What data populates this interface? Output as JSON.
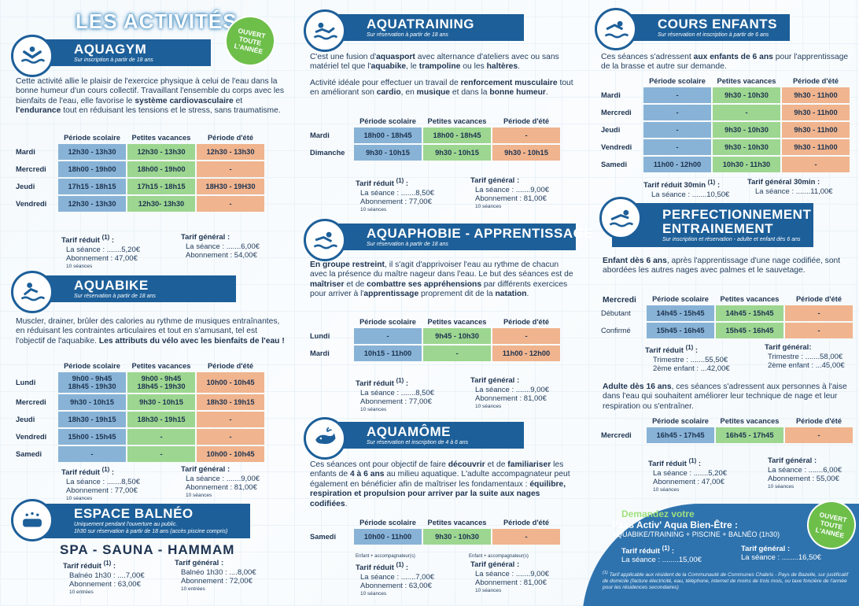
{
  "page_title": "LES ACTIVITÉS",
  "badge1": [
    "OUVERT",
    "TOUTE",
    "L'ANNÉE",
    "(1)"
  ],
  "badge2": [
    "OUVERT",
    "TOUTE",
    "L'ANNÉE",
    "(1)"
  ],
  "cols": [
    "Période scolaire",
    "Petites vacances",
    "Période d'été"
  ],
  "aquagym": {
    "title": "AQUAGYM",
    "sub": "Sur inscription à partir de 18 ans",
    "desc_html": "Cette activité allie le plaisir de l'exercice physique à celui de l'eau dans la bonne humeur d'un cours collectif. Travaillant l'ensemble du corps avec les bienfaits de l'eau, elle favorise le <b>système cardiovasculaire</b> et <b>l'endurance</b> tout en réduisant les tensions et le stress, sans traumatisme.",
    "rows": [
      [
        "Mardi",
        "12h30 - 13h30",
        "12h30 - 13h30",
        "12h30 - 13h30"
      ],
      [
        "Mercredi",
        "18h00 - 19h00",
        "18h00 - 19h00",
        "-"
      ],
      [
        "Jeudi",
        "17h15 - 18h15",
        "17h15 - 18h15",
        "18H30 - 19H30"
      ],
      [
        "Vendredi",
        "12h30 - 13h30",
        "12h30- 13h30",
        "-"
      ]
    ],
    "tr": {
      "h": "Tarif réduit",
      "l1": "La séance : .......5,20€",
      "l2": "Abonnement : 47,00€",
      "l3": "10 séances"
    },
    "tg": {
      "h": "Tarif général :",
      "l1": "La séance : .......6,00€",
      "l2": "Abonnement : 54,00€"
    }
  },
  "aquabike": {
    "title": "AQUABIKE",
    "sub": "Sur réservation à partir de 18 ans",
    "desc_html": "Muscler, drainer, brûler des calories au rythme de musiques entraînantes, en réduisant les contraintes articulaires et tout en s'amusant, tel est l'objectif de l'aquabike. <b>Les attributs du vélo avec les bienfaits de l'eau !</b>",
    "rows": [
      [
        "Lundi",
        "9h00 - 9h45\n18h45 - 19h30",
        "9h00 - 9h45\n18h45 - 19h30",
        "10h00 - 10h45"
      ],
      [
        "Mercredi",
        "9h30 - 10h15",
        "9h30 - 10h15",
        "18h30 - 19h15"
      ],
      [
        "Jeudi",
        "18h30 - 19h15",
        "18h30 - 19h15",
        "-"
      ],
      [
        "Vendredi",
        "15h00 - 15h45",
        "-",
        "-"
      ],
      [
        "Samedi",
        "-",
        "-",
        "10h00 - 10h45"
      ]
    ],
    "tr": {
      "h": "Tarif réduit",
      "l1": "La séance : .......8,50€",
      "l2": "Abonnement : 77,00€",
      "l3": "10 séances"
    },
    "tg": {
      "h": "Tarif général :",
      "l1": "La séance : .......9,00€",
      "l2": "Abonnement : 81,00€",
      "l3": "10 séances"
    }
  },
  "balneo": {
    "title": "ESPACE BALNÉO",
    "sub1": "Uniquement pendant l'ouverture au public.",
    "sub2": "1h30 sur réservation à partir de 18 ans (accès piscine compris)",
    "spa": "SPA - SAUNA - HAMMAM",
    "tr": {
      "h": "Tarif réduit",
      "l1": "Balnéo 1h30 : ....7,00€",
      "l2": "Abonnement : 63,00€",
      "l3": "10 entrées"
    },
    "tg": {
      "h": "Tarif général :",
      "l1": "Balnéo 1h30 : ....8,00€",
      "l2": "Abonnement : 72,00€",
      "l3": "10 entrées"
    }
  },
  "aquatraining": {
    "title": "AQUATRAINING",
    "sub": "Sur réservation à partir de 18 ans",
    "desc1_html": "C'est une fusion d'<b>aquasport</b> avec alternance d'ateliers avec ou sans matériel tel que l'<b>aquabike</b>, le <b>trampoline</b> ou les <b>haltères</b>.",
    "desc2_html": "Activité idéale pour effectuer un travail de <b>renforcement musculaire</b> tout en améliorant son <b>cardio</b>, en <b>musique</b> et dans la <b>bonne humeur</b>.",
    "rows": [
      [
        "Mardi",
        "18h00 - 18h45",
        "18h00 - 18h45",
        "-"
      ],
      [
        "Dimanche",
        "9h30 - 10h15",
        "9h30 - 10h15",
        "9h30 - 10h15"
      ]
    ],
    "tr": {
      "h": "Tarif réduit",
      "l1": "La séance : .......8,50€",
      "l2": "Abonnement : 77,00€",
      "l3": "10 séances"
    },
    "tg": {
      "h": "Tarif général :",
      "l1": "La séance : .......9,00€",
      "l2": "Abonnement : 81,00€",
      "l3": "10 séances"
    }
  },
  "aquaphobie": {
    "title": "AQUAPHOBIE - APPRENTISSAGE",
    "sub": "Sur réservation à partir de 18 ans",
    "desc_html": "<b>En groupe restreint</b>, il s'agit d'apprivoiser l'eau au rythme de chacun avec la présence du maître nageur dans l'eau. Le but des séances est de <b>maîtriser</b> et de <b>combattre ses appréhensions</b> par différents exercices pour arriver à l'<b>apprentissage</b> proprement dit de la <b>natation</b>.",
    "rows": [
      [
        "Lundi",
        "-",
        "9h45 - 10h30",
        "-"
      ],
      [
        "Mardi",
        "10h15 - 11h00",
        "-",
        "11h00 - 12h00"
      ]
    ],
    "tr": {
      "h": "Tarif réduit",
      "l1": "La séance : .......8,50€",
      "l2": "Abonnement : 77,00€",
      "l3": "10 séances"
    },
    "tg": {
      "h": "Tarif général :",
      "l1": "La séance : .......9,00€",
      "l2": "Abonnement : 81,00€",
      "l3": "10 séances"
    }
  },
  "aquamome": {
    "title": "AQUAMÔME",
    "sub": "Sur réservation et inscription de 4 à 6 ans",
    "desc_html": "Ces séances ont pour objectif de faire <b>découvrir</b> et de <b>familiariser</b> les enfants de <b>4 à 6 ans</b> au milieu aquatique. L'adulte accompagnateur peut également en bénéficier afin de maîtriser les fondamentaux : <b>équilibre, respiration et propulsion pour arriver par la suite aux nages codifiées</b>.",
    "rows": [
      [
        "Samedi",
        "10h00 - 11h00",
        "9h30 - 10h30",
        "-"
      ]
    ],
    "note": "Enfant + accompagnateur(s)",
    "tr": {
      "h": "Tarif réduit",
      "l1": "La séance : .......7,00€",
      "l2": "Abonnement : 63,00€",
      "l3": "10 séances"
    },
    "tg": {
      "h": "Tarif général :",
      "l1": "La séance : .......9,00€",
      "l2": "Abonnement : 81,00€",
      "l3": "10 séances"
    }
  },
  "cours": {
    "title": "COURS ENFANTS",
    "sub": "Sur réservation et inscription à partir de 6 ans",
    "desc_html": "Ces séances s'adressent <b>aux enfants de 6 ans</b> pour l'apprentissage de la brasse et autre sur demande.",
    "rows": [
      [
        "Mardi",
        "-",
        "9h30 - 10h30",
        "9h30 - 11h00"
      ],
      [
        "Mercredi",
        "-",
        "-",
        "9h30 - 11h00"
      ],
      [
        "Jeudi",
        "-",
        "9h30 - 10h30",
        "9h30 - 11h00"
      ],
      [
        "Vendredi",
        "-",
        "9h30 - 10h30",
        "9h30 - 11h00"
      ],
      [
        "Samedi",
        "11h00 - 12h00",
        "10h30 - 11h30",
        "-"
      ]
    ],
    "tr": {
      "h": "Tarif réduit 30min",
      "l1": "La séance : .......10,50€"
    },
    "tg": {
      "h": "Tarif général 30min :",
      "l1": "La séance : .......11,00€"
    }
  },
  "perf": {
    "title1": "PERFECTIONNEMENT",
    "title2": "ENTRAINEMENT",
    "sub": "Sur inscription et réservation - adulte et enfant dès 6 ans",
    "desc_html": "<b>Enfant dès 6 ans</b>, après l'apprentissage d'une nage codifiée, sont abordées les autres nages avec palmes et le sauvetage.",
    "day": "Mercredi",
    "rows": [
      [
        "Débutant",
        "14h45 - 15h45",
        "14h45 - 15h45",
        "-"
      ],
      [
        "Confirmé",
        "15h45 - 16h45",
        "15h45 - 16h45",
        "-"
      ]
    ],
    "tr": {
      "h": "Tarif réduit",
      "l1": "Trimestre : .......55,50€",
      "l2": "2ème enfant : ...42,00€"
    },
    "tg": {
      "h": "Tarif général:",
      "l1": "Trimestre : .......58,00€",
      "l2": "2ème enfant : ...45,00€"
    },
    "desc2_html": "<b>Adulte dès 16 ans</b>, ces séances s'adressent aux personnes à l'aise dans l'eau qui souhaitent améliorer leur technique de nage et leur respiration ou s'entraîner.",
    "rows2": [
      [
        "Mercredi",
        "16h45 - 17h45",
        "16h45 - 17h45",
        "-"
      ]
    ],
    "tr2": {
      "h": "Tarif réduit",
      "l1": "La séance : .......5,20€",
      "l2": "Abonnement : 47,00€",
      "l3": "10 séances"
    },
    "tg2": {
      "h": "Tarif général :",
      "l1": "La séance : .......6,00€",
      "l2": "Abonnement : 55,00€",
      "l3": "10 séances"
    }
  },
  "pass": {
    "t1": "Demandez votre",
    "t2": "Pass Activ' Aqua Bien-Être :",
    "t3": "AQUABIKE/TRAINING + PISCINE + BALNÉO (1h30)",
    "trh": "Tarif réduit",
    "trl": "La séance : ........15,00€",
    "tgh": "Tarif général :",
    "tgl": "La séance : ........16,50€",
    "foot": "Tarif applicable aux résident de la Communauté de Communes Chabris - Pays de Bazelle, sur justificatif de domicile (facture électricité, eau, téléphone, internet de moins de trois mois, ou taxe foncière de l'année pour les résidences secondaires)"
  }
}
